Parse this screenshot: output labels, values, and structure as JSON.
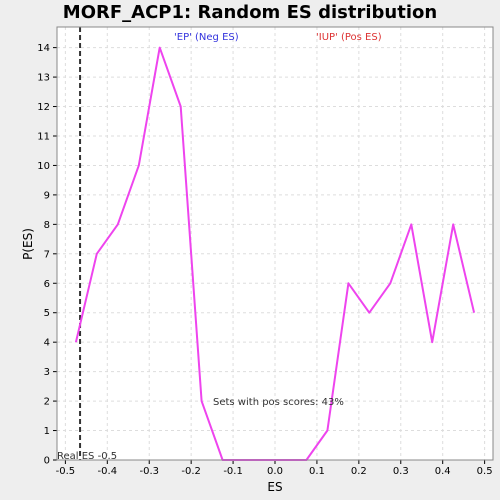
{
  "chart_data": {
    "type": "line",
    "title": "MORF_ACP1: Random ES distribution",
    "xlabel": "ES",
    "ylabel": "P(ES)",
    "xlim": [
      -0.52,
      0.52
    ],
    "ylim": [
      0,
      14.7
    ],
    "xticks": [
      "-0.5",
      "-0.4",
      "-0.3",
      "-0.2",
      "-0.1",
      "0.0",
      "0.1",
      "0.2",
      "0.3",
      "0.4",
      "0.5"
    ],
    "xtick_values": [
      -0.5,
      -0.4,
      -0.3,
      -0.2,
      -0.1,
      0.0,
      0.1,
      0.2,
      0.3,
      0.4,
      0.5
    ],
    "yticks": [
      "0",
      "1",
      "2",
      "3",
      "4",
      "5",
      "6",
      "7",
      "8",
      "9",
      "10",
      "11",
      "12",
      "13",
      "14"
    ],
    "ytick_values": [
      0,
      1,
      2,
      3,
      4,
      5,
      6,
      7,
      8,
      9,
      10,
      11,
      12,
      13,
      14
    ],
    "grid": true,
    "series": [
      {
        "color": "#ee44ee",
        "x": [
          -0.475,
          -0.425,
          -0.375,
          -0.325,
          -0.275,
          -0.225,
          -0.175,
          -0.125,
          -0.075,
          -0.025,
          0.025,
          0.075,
          0.125,
          0.175,
          0.225,
          0.275,
          0.325,
          0.375,
          0.425,
          0.475
        ],
        "y": [
          4,
          7,
          8,
          10,
          14,
          12,
          2,
          0,
          0,
          0,
          0,
          0,
          1,
          6,
          5,
          6,
          8,
          4,
          8,
          5
        ]
      }
    ],
    "real_es": -0.465,
    "annotations": {
      "neg_label": "'EP' (Neg ES)",
      "pos_label": "'IUP' (Pos ES)",
      "real_es_label": "Real ES -0.5",
      "pos_scores_label": "Sets with pos scores: 43%"
    },
    "colors": {
      "line": "#ee44ee",
      "neg_label": "#3333dd",
      "pos_label": "#dd3333",
      "grid": "#dddddd",
      "real_es_line": "#333333"
    }
  }
}
